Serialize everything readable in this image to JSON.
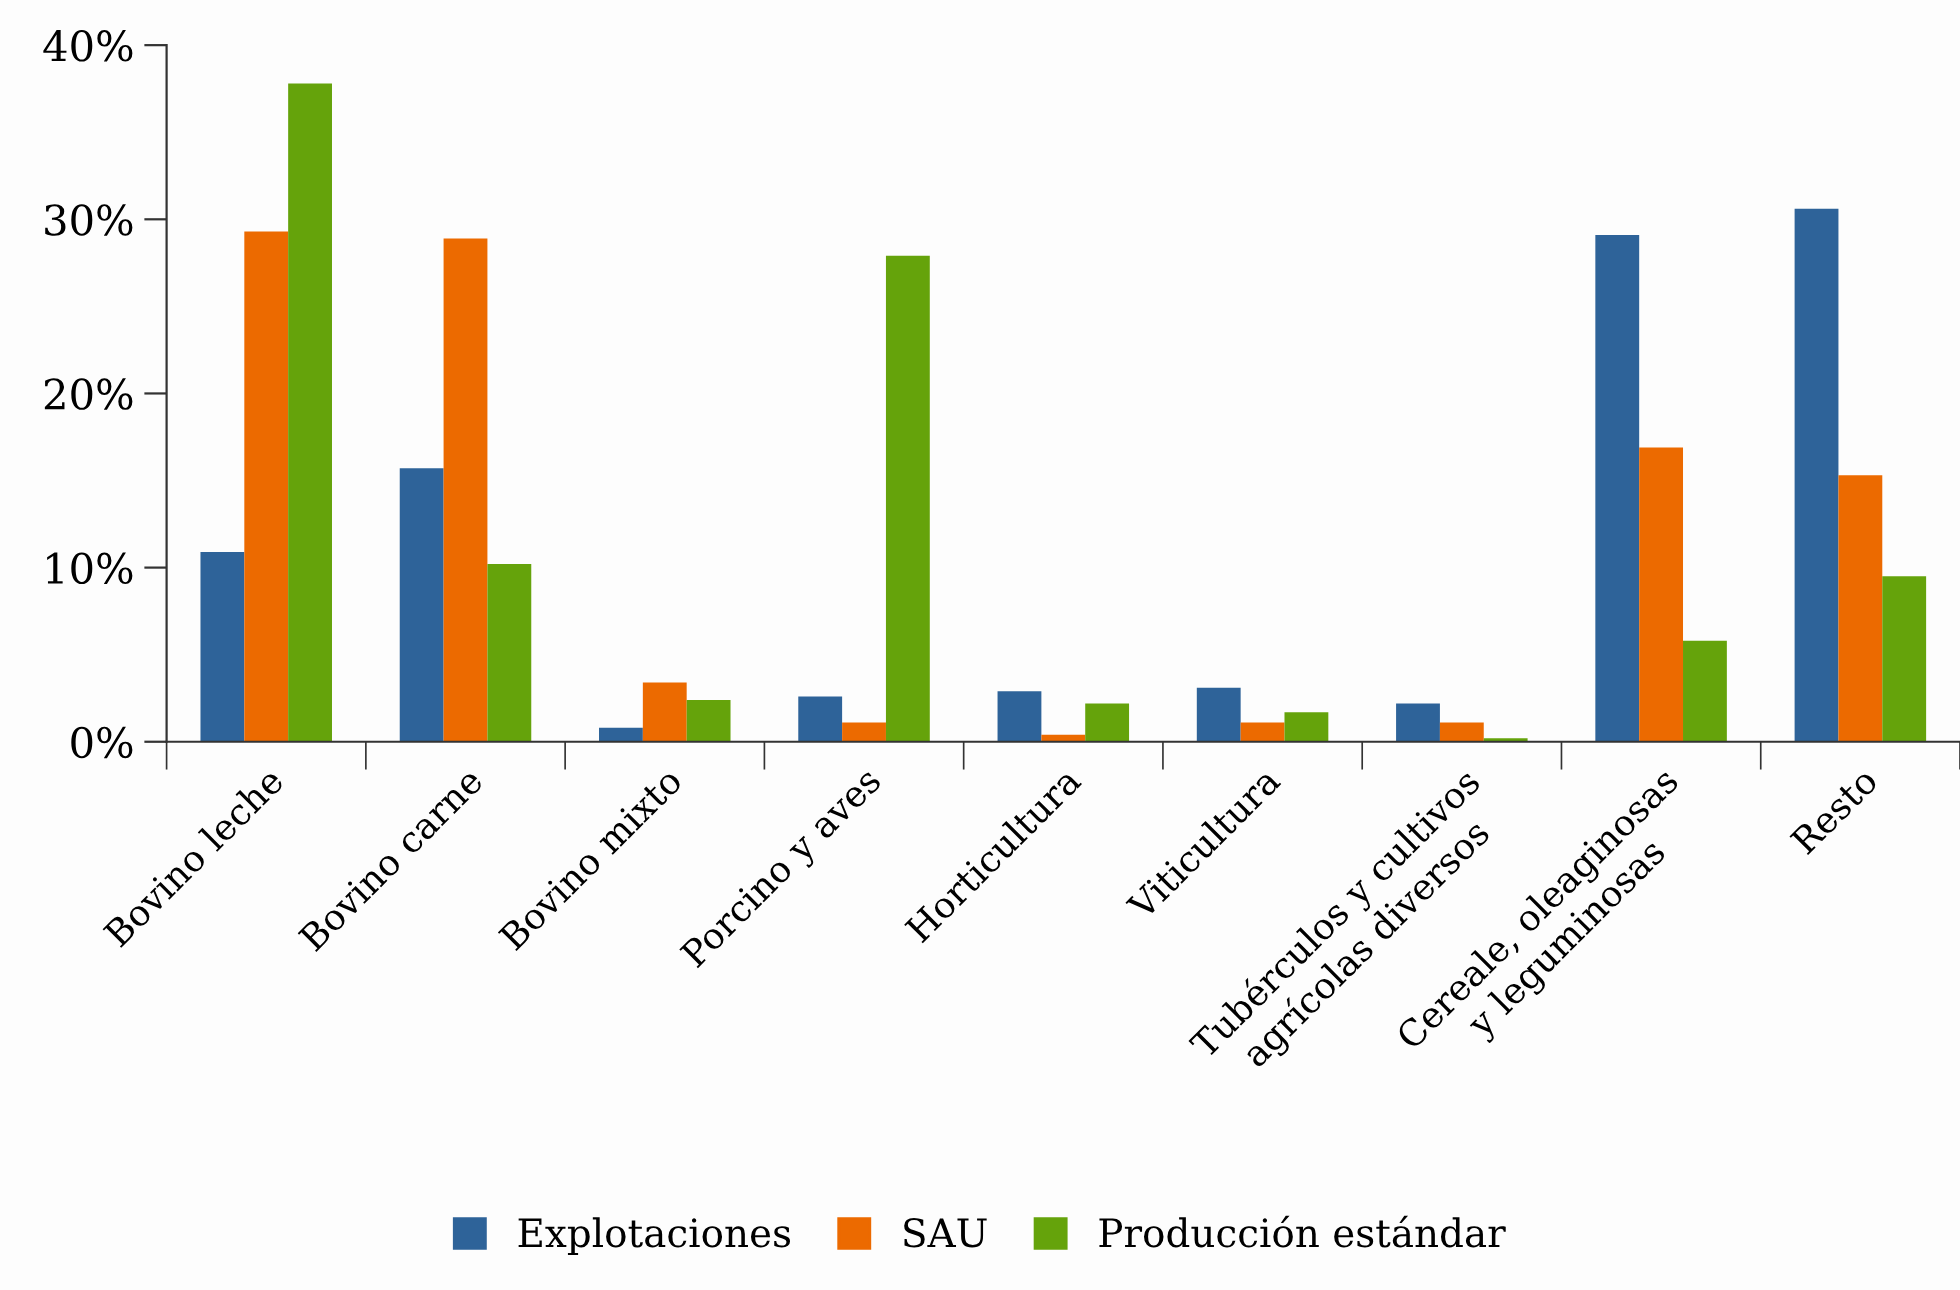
{
  "chart_data": {
    "type": "bar",
    "categories": [
      "Bovino leche",
      "Bovino carne",
      "Bovino mixto",
      "Porcino y aves",
      "Horticultura",
      "Viticultura",
      "Tubérculos y cultivos\nagrícolas diversos",
      "Cereale, oleaginosas\ny leguminosas",
      "Resto"
    ],
    "series": [
      {
        "name": "Explotaciones",
        "color": "#2e6399",
        "values": [
          10.9,
          15.7,
          0.8,
          2.6,
          2.9,
          3.1,
          2.2,
          29.1,
          30.6
        ]
      },
      {
        "name": "SAU",
        "color": "#ec6a00",
        "values": [
          29.3,
          28.9,
          3.4,
          1.1,
          0.4,
          1.1,
          1.1,
          16.9,
          15.3
        ]
      },
      {
        "name": "Producción estándar",
        "color": "#65a30b",
        "values": [
          37.8,
          10.2,
          2.4,
          27.9,
          2.2,
          1.7,
          0.2,
          5.8,
          9.5
        ]
      }
    ],
    "ylim": [
      0,
      40
    ],
    "yticks": [
      {
        "value": 0,
        "label": "0%"
      },
      {
        "value": 10,
        "label": "10%"
      },
      {
        "value": 20,
        "label": "20%"
      },
      {
        "value": 30,
        "label": "30%"
      },
      {
        "value": 40,
        "label": "40%"
      }
    ],
    "grid": false,
    "legend": "bottom"
  }
}
